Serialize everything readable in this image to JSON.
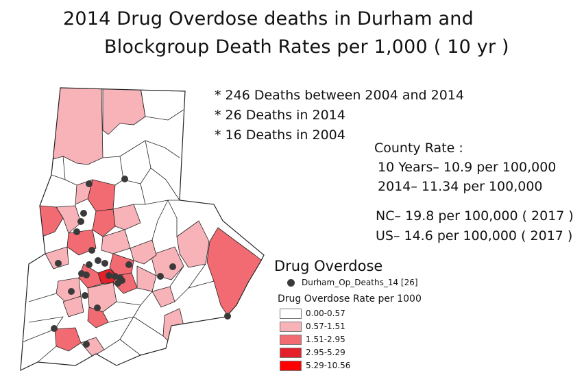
{
  "title": {
    "line1": "2014  Drug Overdose   deaths in Durham and",
    "line2": "Blockgroup  Death Rates per 1,000 ( 10 yr )"
  },
  "stats": {
    "deaths_total": "* 246 Deaths between 2004 and 2014",
    "deaths_2014": "* 26 Deaths in 2014",
    "deaths_2004": "* 16 Deaths in 2004",
    "county_rate_label": "County Rate :",
    "ten_years": "10 Years–  10.9 per 100,000",
    "year_2014": "2014–    11.34 per 100,000",
    "nc": "NC–  19.8 per 100,000 ( 2017 )",
    "us": "US–  14.6 per 100,000 ( 2017 )"
  },
  "legend": {
    "title": "Drug Overdose",
    "point_layer": "Durham_Op_Deaths_14 [26]",
    "rate_title": "Drug Overdose Rate per 1000",
    "classes": [
      {
        "label": "0.00-0.57",
        "color": "#ffffff"
      },
      {
        "label": "0.57-1.51",
        "color": "#f7b3b8"
      },
      {
        "label": "1.51-2.95",
        "color": "#f26b72"
      },
      {
        "label": "2.95-5.29",
        "color": "#e4202a"
      },
      {
        "label": "5.29-10.56",
        "color": "#ff0000"
      }
    ]
  },
  "map": {
    "point_color": "#3a3a3a",
    "boundary_color": "#222222"
  }
}
